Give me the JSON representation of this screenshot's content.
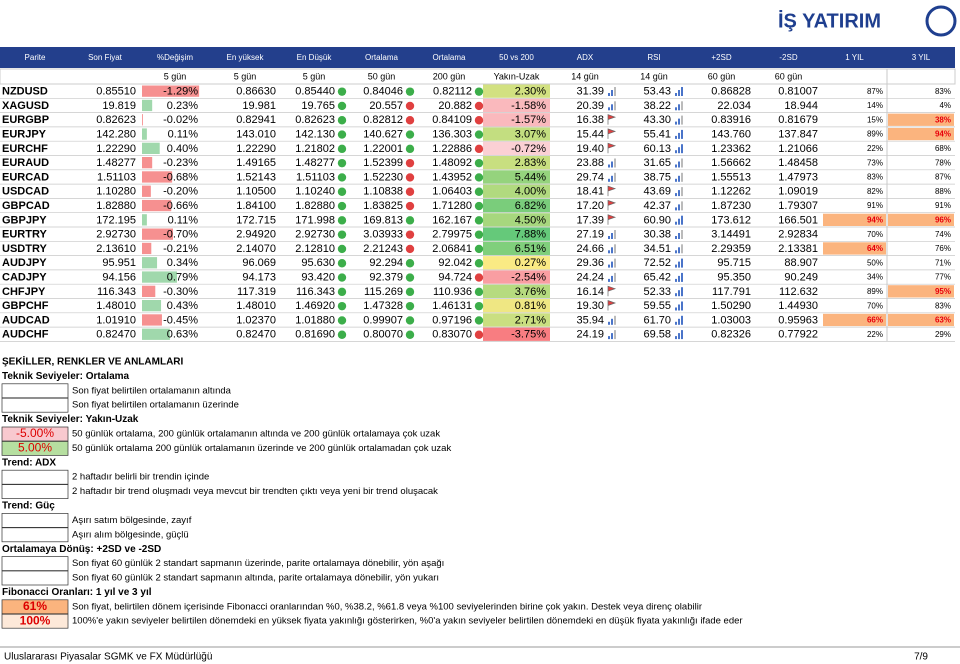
{
  "logo": "İŞ YATIRIM",
  "table": {
    "headers": [
      "Parite",
      "Son Fiyat",
      "%Değişim",
      "En yüksek",
      "En Düşük",
      "Ortalama",
      "Ortalama",
      "50 vs 200",
      "ADX",
      "RSI",
      "+2SD",
      "-2SD",
      "1 YIL",
      "3 YIL"
    ],
    "subheaders": [
      "5 gün",
      "5 gün",
      "5 gün",
      "50 gün",
      "200 gün",
      "Yakın-Uzak",
      "14 gün",
      "14 gün",
      "60 gün",
      "60 gün"
    ],
    "rows": [
      [
        "NZDUSD",
        "0.85510",
        "-1.29%",
        "0.86630",
        "0.85440",
        "0.84046",
        "0.82112",
        "2.30%",
        "31.39",
        "53.43",
        "0.86828",
        "0.81007",
        "87%",
        "83%"
      ],
      [
        "XAGUSD",
        "19.819",
        "0.23%",
        "19.981",
        "19.765",
        "20.557",
        "20.882",
        "-1.58%",
        "20.39",
        "38.22",
        "22.034",
        "18.944",
        "14%",
        "4%"
      ],
      [
        "EURGBP",
        "0.82623",
        "-0.02%",
        "0.82941",
        "0.82623",
        "0.82812",
        "0.84109",
        "-1.57%",
        "16.38",
        "43.30",
        "0.83916",
        "0.81679",
        "15%",
        "38%"
      ],
      [
        "EURJPY",
        "142.280",
        "0.11%",
        "143.010",
        "142.130",
        "140.627",
        "136.303",
        "3.07%",
        "15.44",
        "55.41",
        "143.760",
        "137.847",
        "89%",
        "94%"
      ],
      [
        "EURCHF",
        "1.22290",
        "0.40%",
        "1.22290",
        "1.21802",
        "1.22001",
        "1.22886",
        "-0.72%",
        "19.40",
        "60.13",
        "1.23362",
        "1.21066",
        "22%",
        "68%"
      ],
      [
        "EURAUD",
        "1.48277",
        "-0.23%",
        "1.49165",
        "1.48277",
        "1.52399",
        "1.48092",
        "2.83%",
        "23.88",
        "31.65",
        "1.56662",
        "1.48458",
        "73%",
        "78%"
      ],
      [
        "EURCAD",
        "1.51103",
        "-0.68%",
        "1.52143",
        "1.51103",
        "1.52230",
        "1.43952",
        "5.44%",
        "29.74",
        "38.75",
        "1.55513",
        "1.47973",
        "83%",
        "87%"
      ],
      [
        "USDCAD",
        "1.10280",
        "-0.20%",
        "1.10500",
        "1.10240",
        "1.10838",
        "1.06403",
        "4.00%",
        "18.41",
        "43.69",
        "1.12262",
        "1.09019",
        "82%",
        "88%"
      ],
      [
        "GBPCAD",
        "1.82880",
        "-0.66%",
        "1.84100",
        "1.82880",
        "1.83825",
        "1.71280",
        "6.82%",
        "17.20",
        "42.37",
        "1.87230",
        "1.79307",
        "91%",
        "91%"
      ],
      [
        "GBPJPY",
        "172.195",
        "0.11%",
        "172.715",
        "171.998",
        "169.813",
        "162.167",
        "4.50%",
        "17.39",
        "60.90",
        "173.612",
        "166.501",
        "94%",
        "96%"
      ],
      [
        "EURTRY",
        "2.92730",
        "-0.70%",
        "2.94920",
        "2.92730",
        "3.03933",
        "2.79975",
        "7.88%",
        "27.19",
        "30.38",
        "3.14491",
        "2.92834",
        "70%",
        "74%"
      ],
      [
        "USDTRY",
        "2.13610",
        "-0.21%",
        "2.14070",
        "2.12810",
        "2.21243",
        "2.06841",
        "6.51%",
        "24.66",
        "34.51",
        "2.29359",
        "2.13381",
        "64%",
        "76%"
      ],
      [
        "AUDJPY",
        "95.951",
        "0.34%",
        "96.069",
        "95.630",
        "92.294",
        "92.042",
        "0.27%",
        "29.36",
        "72.52",
        "95.715",
        "88.907",
        "50%",
        "71%"
      ],
      [
        "CADJPY",
        "94.156",
        "0.79%",
        "94.173",
        "93.420",
        "92.379",
        "94.724",
        "-2.54%",
        "24.24",
        "65.42",
        "95.350",
        "90.249",
        "34%",
        "77%"
      ],
      [
        "CHFJPY",
        "116.343",
        "-0.30%",
        "117.319",
        "116.343",
        "115.269",
        "110.936",
        "3.76%",
        "16.14",
        "52.33",
        "117.791",
        "112.632",
        "89%",
        "95%"
      ],
      [
        "GBPCHF",
        "1.48010",
        "0.43%",
        "1.48010",
        "1.46920",
        "1.47328",
        "1.46131",
        "0.81%",
        "19.30",
        "59.55",
        "1.50290",
        "1.44930",
        "70%",
        "83%"
      ],
      [
        "AUDCAD",
        "1.01910",
        "-0.45%",
        "1.02370",
        "1.01880",
        "0.99907",
        "0.97196",
        "2.71%",
        "35.94",
        "61.70",
        "1.03003",
        "0.95963",
        "66%",
        "63%"
      ],
      [
        "AUDCHF",
        "0.82470",
        "0.63%",
        "0.82470",
        "0.81690",
        "0.80070",
        "0.83070",
        "-3.75%",
        "24.19",
        "69.58",
        "0.82326",
        "0.77922",
        "22%",
        "29%"
      ]
    ],
    "highlight_color": "#fbb47e",
    "highlight": {
      "1y": [
        9,
        11,
        16
      ],
      "3y": [
        2,
        3,
        9,
        14,
        16
      ]
    }
  },
  "legend": {
    "title": "ŞEKİLLER, RENKLER VE ANLAMLARI",
    "sections": [
      {
        "heading": "Teknik Seviyeler: Ortalama",
        "items": [
          {
            "text": "Son fiyat belirtilen ortalamanın altında"
          },
          {
            "text": "Son fiyat belirtilen ortalamanın üzerinde"
          }
        ]
      },
      {
        "heading": "Teknik Seviyeler: Yakın-Uzak",
        "items": [
          {
            "swatch": "-5.00%",
            "swatch_color": "#f8c9cf",
            "text": "50 günlük ortalama, 200 günlük ortalamanın altında ve 200 günlük ortalamaya çok uzak"
          },
          {
            "swatch": "5.00%",
            "swatch_color": "#b6dfa0",
            "text": "50 günlük ortalama 200 günlük ortalamanın üzerinde ve 200 günlük ortalamadan çok uzak"
          }
        ]
      },
      {
        "heading": "Trend: ADX",
        "items": [
          {
            "text": "2 haftadır belirli bir trendin içinde"
          },
          {
            "text": "2 haftadır bir trend oluşmadı veya mevcut bir trendten çıktı veya yeni bir trend oluşacak"
          }
        ]
      },
      {
        "heading": "Trend: Güç",
        "items": [
          {
            "text": "Aşırı satım bölgesinde, zayıf"
          },
          {
            "text": "Aşırı alım bölgesinde, güçlü"
          }
        ]
      },
      {
        "heading": "Ortalamaya Dönüş: +2SD ve -2SD",
        "items": [
          {
            "text": "Son fiyat 60 günlük 2 standart sapmanın üzerinde, parite ortalamaya dönebilir, yön aşağı"
          },
          {
            "text": "Son fiyat 60 günlük 2 standart sapmanın altında, parite ortalamaya dönebilir, yön yukarı"
          }
        ]
      },
      {
        "heading": "Fibonacci Oranları: 1 yıl ve 3 yıl",
        "items": [
          {
            "swatch": "61%",
            "swatch_color": "#fbb47e",
            "text": "Son fiyat, belirtilen dönem içerisinde Fibonacci oranlarından %0, %38.2, %61.8 veya %100 seviyelerinden birine çok yakın. Destek veya direnç olabilir"
          },
          {
            "swatch": "100%",
            "swatch_color": "#fde9d9",
            "text": "100%'e yakın seviyeler belirtilen dönemdeki en yüksek fiyata yakınlığı gösterirken, %0'a yakın seviyeler belirtilen dönemdeki en düşük fiyata yakınlığı ifade eder"
          }
        ]
      }
    ]
  },
  "footer": {
    "left": "Uluslararası Piyasalar SGMK ve FX Müdürlüğü",
    "page": "7/9"
  }
}
